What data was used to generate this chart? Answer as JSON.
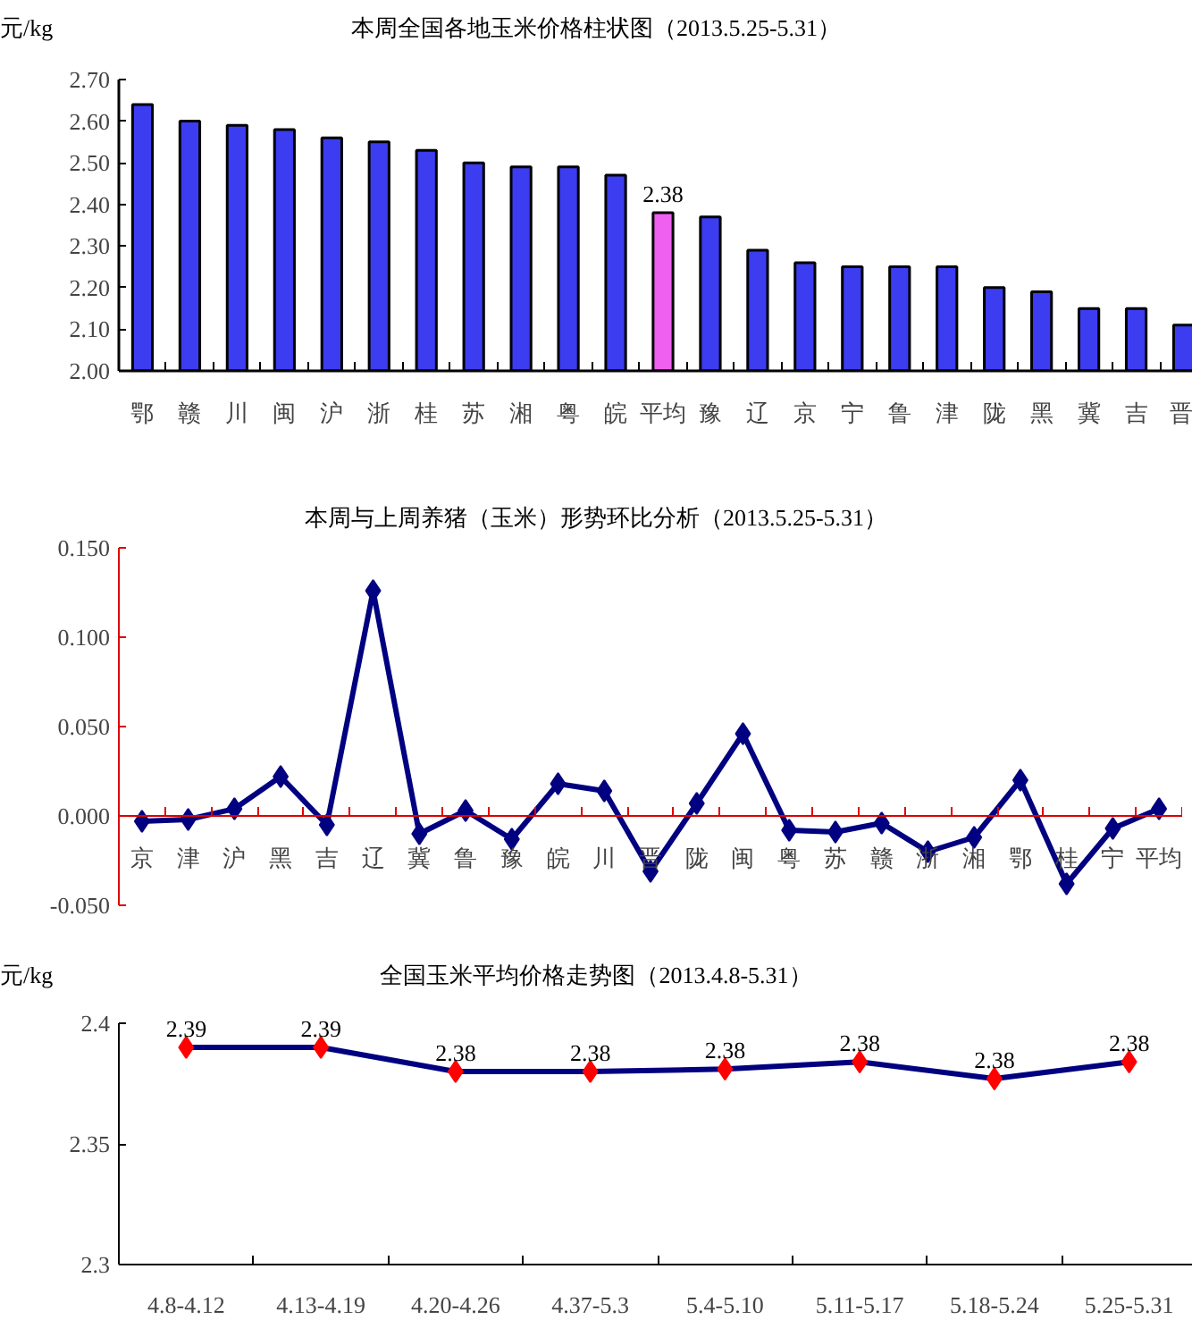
{
  "chart_data": [
    {
      "type": "bar",
      "title": "本周全国各地玉米价格柱状图（2013.5.25-5.31）",
      "ylabel": "元/kg",
      "categories": [
        "鄂",
        "赣",
        "川",
        "闽",
        "沪",
        "浙",
        "桂",
        "苏",
        "湘",
        "粤",
        "皖",
        "平均",
        "豫",
        "辽",
        "京",
        "宁",
        "鲁",
        "津",
        "陇",
        "黑",
        "冀",
        "吉",
        "晋"
      ],
      "values": [
        2.64,
        2.6,
        2.59,
        2.58,
        2.56,
        2.55,
        2.53,
        2.5,
        2.49,
        2.49,
        2.47,
        2.38,
        2.37,
        2.29,
        2.26,
        2.25,
        2.25,
        2.25,
        2.2,
        2.19,
        2.15,
        2.15,
        2.11
      ],
      "colors": [
        "#3c3cf0",
        "#3c3cf0",
        "#3c3cf0",
        "#3c3cf0",
        "#3c3cf0",
        "#3c3cf0",
        "#3c3cf0",
        "#3c3cf0",
        "#3c3cf0",
        "#3c3cf0",
        "#3c3cf0",
        "#f060f0",
        "#3c3cf0",
        "#3c3cf0",
        "#3c3cf0",
        "#3c3cf0",
        "#3c3cf0",
        "#3c3cf0",
        "#3c3cf0",
        "#3c3cf0",
        "#3c3cf0",
        "#3c3cf0",
        "#3c3cf0"
      ],
      "value_labels": [
        null,
        null,
        null,
        null,
        null,
        null,
        null,
        null,
        null,
        null,
        null,
        "2.38",
        null,
        null,
        null,
        null,
        null,
        null,
        null,
        null,
        null,
        null,
        null
      ],
      "ylim": [
        2.0,
        2.7
      ],
      "yticks": [
        {
          "value": 2.0,
          "label": "2.00"
        },
        {
          "value": 2.1,
          "label": "2.10"
        },
        {
          "value": 2.2,
          "label": "2.20"
        },
        {
          "value": 2.3,
          "label": "2.30"
        },
        {
          "value": 2.4,
          "label": "2.40"
        },
        {
          "value": 2.5,
          "label": "2.50"
        },
        {
          "value": 2.6,
          "label": "2.60"
        },
        {
          "value": 2.7,
          "label": "2.70"
        }
      ]
    },
    {
      "type": "line",
      "title": "本周与上周养猪（玉米）形势环比分析（2013.5.25-5.31）",
      "categories": [
        "京",
        "津",
        "沪",
        "黑",
        "吉",
        "辽",
        "冀",
        "鲁",
        "豫",
        "皖",
        "川",
        "晋",
        "陇",
        "闽",
        "粤",
        "苏",
        "赣",
        "浙",
        "湘",
        "鄂",
        "桂",
        "宁",
        "平均"
      ],
      "series": [
        {
          "color": "#000080",
          "values": [
            -0.003,
            -0.002,
            0.004,
            0.022,
            -0.005,
            0.126,
            -0.01,
            0.003,
            -0.013,
            0.018,
            0.014,
            -0.031,
            0.007,
            0.046,
            -0.008,
            -0.009,
            -0.004,
            -0.02,
            -0.012,
            0.02,
            -0.038,
            -0.007,
            0.004
          ]
        }
      ],
      "marker": "diamond",
      "ylim": [
        -0.05,
        0.15
      ],
      "yticks": [
        {
          "value": -0.05,
          "label": "-0.050"
        },
        {
          "value": 0.0,
          "label": "0.000"
        },
        {
          "value": 0.05,
          "label": "0.050"
        },
        {
          "value": 0.1,
          "label": "0.100"
        },
        {
          "value": 0.15,
          "label": "0.150"
        }
      ]
    },
    {
      "type": "line",
      "title": "全国玉米平均价格走势图（2013.4.8-5.31）",
      "ylabel": "元/kg",
      "categories": [
        "4.8-4.12",
        "4.13-4.19",
        "4.20-4.26",
        "4.37-5.3",
        "5.4-5.10",
        "5.11-5.17",
        "5.18-5.24",
        "5.25-5.31"
      ],
      "series": [
        {
          "color": "#000080",
          "colors": [
            "#ff0000",
            "#ff0000",
            "#ff0000",
            "#ff0000",
            "#ff0000",
            "#ff0000",
            "#ff0000",
            "#ff0000"
          ],
          "values": [
            2.39,
            2.39,
            2.38,
            2.38,
            2.381,
            2.384,
            2.377,
            2.384
          ],
          "value_labels": [
            "2.39",
            "2.39",
            "2.38",
            "2.38",
            "2.38",
            "2.38",
            "2.38",
            "2.38"
          ]
        }
      ],
      "marker": "diamond",
      "ylim": [
        2.3,
        2.4
      ],
      "yticks": [
        2.3,
        2.35,
        2.4
      ]
    }
  ]
}
